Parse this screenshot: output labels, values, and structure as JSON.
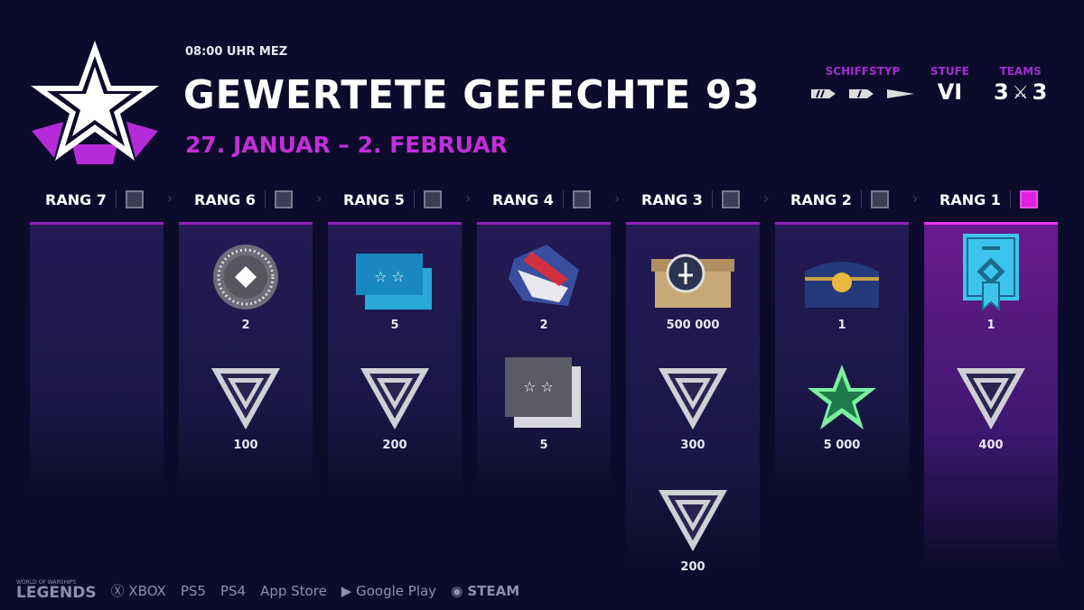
{
  "header": {
    "time": "08:00 UHR MEZ",
    "title": "GEWERTETE GEFECHTE 93",
    "dates": "27. JANUAR – 2. FEBRUAR"
  },
  "meta": {
    "ship_type_label": "SCHIFFSTYP",
    "tier_label": "STUFE",
    "tier_value": "VI",
    "teams_label": "TEAMS",
    "teams_left": "3",
    "teams_right": "3"
  },
  "colors": {
    "background": "#0d0b2b",
    "accent": "#c22fd9",
    "active": "#ea32ee"
  },
  "ranks": [
    {
      "label": "RANG 7",
      "items": []
    },
    {
      "label": "RANG 6",
      "items": [
        {
          "icon": "signal-coin-icon",
          "qty": "2"
        },
        {
          "icon": "league-v-icon",
          "qty": "100"
        }
      ]
    },
    {
      "label": "RANG 5",
      "items": [
        {
          "icon": "blue-flags-icon",
          "qty": "5"
        },
        {
          "icon": "league-v-icon",
          "qty": "200"
        }
      ]
    },
    {
      "label": "RANG 4",
      "items": [
        {
          "icon": "camouflage-icon",
          "qty": "2"
        },
        {
          "icon": "gray-flags-icon",
          "qty": "5"
        }
      ]
    },
    {
      "label": "RANG 3",
      "items": [
        {
          "icon": "supply-crate-icon",
          "qty": "500 000"
        },
        {
          "icon": "league-v-icon",
          "qty": "300"
        },
        {
          "icon": "league-v-icon",
          "qty": "200"
        }
      ]
    },
    {
      "label": "RANG 2",
      "items": [
        {
          "icon": "treasure-chest-icon",
          "qty": "1"
        },
        {
          "icon": "green-star-icon",
          "qty": "5 000"
        }
      ]
    },
    {
      "label": "RANG 1",
      "active": true,
      "items": [
        {
          "icon": "certificate-icon",
          "qty": "1"
        },
        {
          "icon": "league-v-icon",
          "qty": "400"
        }
      ]
    }
  ],
  "footer": {
    "brand_top": "WORLD OF WARSHIPS",
    "brand": "LEGENDS",
    "platforms": [
      "XBOX",
      "PS5",
      "PS4",
      "App Store",
      "Google Play",
      "STEAM"
    ]
  }
}
